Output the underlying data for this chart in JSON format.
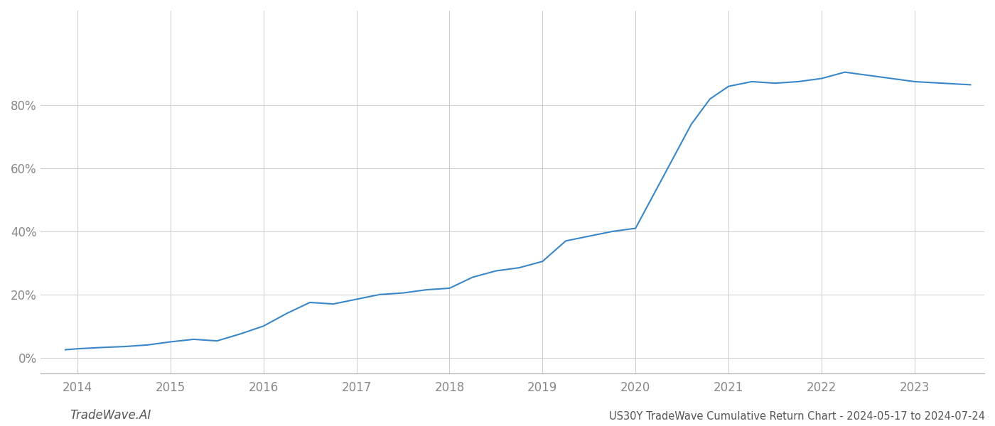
{
  "title": "US30Y TradeWave Cumulative Return Chart - 2024-05-17 to 2024-07-24",
  "watermark": "TradeWave.AI",
  "line_color": "#3a87c8",
  "line_width": 1.5,
  "background_color": "#ffffff",
  "grid_color": "#cccccc",
  "x_years": [
    2013.87,
    2014.0,
    2014.25,
    2014.5,
    2014.75,
    2015.0,
    2015.25,
    2015.5,
    2015.75,
    2016.0,
    2016.25,
    2016.5,
    2016.75,
    2017.0,
    2017.25,
    2017.5,
    2017.75,
    2018.0,
    2018.25,
    2018.5,
    2018.75,
    2019.0,
    2019.25,
    2019.5,
    2019.75,
    2020.0,
    2020.2,
    2020.4,
    2020.6,
    2020.8,
    2021.0,
    2021.25,
    2021.5,
    2021.75,
    2022.0,
    2022.25,
    2022.5,
    2022.75,
    2023.0,
    2023.3,
    2023.6
  ],
  "y_values": [
    2.5,
    2.8,
    3.2,
    3.5,
    4.0,
    5.0,
    5.8,
    5.3,
    7.5,
    10.0,
    14.0,
    17.5,
    17.0,
    18.5,
    20.0,
    20.5,
    21.5,
    22.0,
    25.5,
    27.5,
    28.5,
    30.5,
    37.0,
    38.5,
    40.0,
    41.0,
    52.0,
    63.0,
    74.0,
    82.0,
    86.0,
    87.5,
    87.0,
    87.5,
    88.5,
    90.5,
    89.5,
    88.5,
    87.5,
    87.0,
    86.5
  ],
  "xticks": [
    2014,
    2015,
    2016,
    2017,
    2018,
    2019,
    2020,
    2021,
    2022,
    2023
  ],
  "yticks": [
    0,
    20,
    40,
    60,
    80
  ],
  "ylim": [
    -5,
    110
  ],
  "xlim": [
    2013.6,
    2023.75
  ],
  "title_fontsize": 10.5,
  "tick_fontsize": 12,
  "watermark_fontsize": 12
}
